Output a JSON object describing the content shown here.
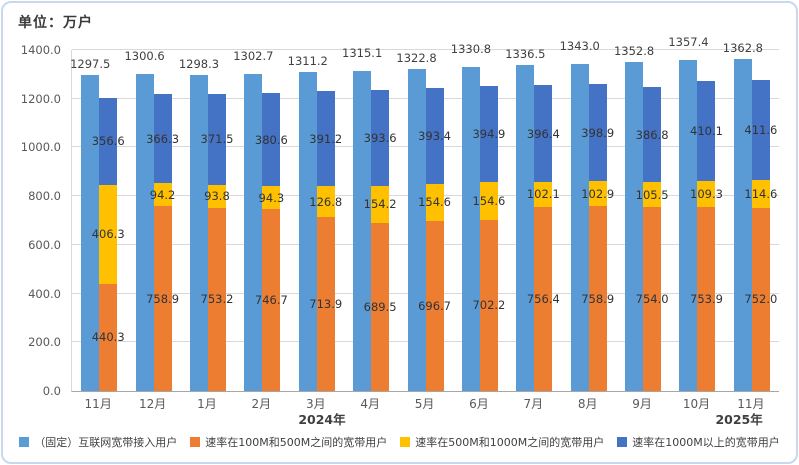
{
  "title": "单位：万户",
  "chart_data": {
    "type": "bar",
    "title": "单位：万户",
    "xlabel": "",
    "ylabel": "万户",
    "ylim": [
      0,
      1400
    ],
    "y_tick_step": 200,
    "grid": true,
    "legend_position": "bottom",
    "bar_arrangement": "per month: total bar beside a stacked bar (stack bottom→top: 100M-500M, 500M-1000M, 1000M+)",
    "categories": [
      "11月",
      "12月",
      "1月",
      "2月",
      "3月",
      "4月",
      "5月",
      "6月",
      "7月",
      "8月",
      "9月",
      "10月",
      "11月"
    ],
    "year_labels": [
      {
        "text": "2024年",
        "x_pct": 35.5
      },
      {
        "text": "2025年",
        "x_pct": 94.5
      }
    ],
    "series": [
      {
        "name": "（固定）互联网宽带接入用户",
        "color": "#5B9BD5",
        "role": "total",
        "values": [
          1297.5,
          1300.6,
          1298.3,
          1302.7,
          1311.2,
          1315.1,
          1322.8,
          1330.8,
          1336.5,
          1343.0,
          1352.8,
          1357.4,
          1362.8
        ]
      },
      {
        "name": "速率在100M和500M之间的宽带用户",
        "color": "#ED7D31",
        "role": "stack-bottom",
        "values": [
          440.3,
          758.9,
          753.2,
          746.7,
          713.9,
          689.5,
          696.7,
          702.2,
          756.4,
          758.9,
          754.0,
          753.9,
          752.0
        ]
      },
      {
        "name": "速率在500M和1000M之间的宽带用户",
        "color": "#FFC000",
        "role": "stack-middle",
        "values": [
          406.3,
          94.2,
          93.8,
          94.3,
          126.8,
          154.2,
          154.6,
          154.6,
          102.1,
          102.9,
          105.5,
          109.3,
          114.6
        ]
      },
      {
        "name": "速率在1000M以上的宽带用户",
        "color": "#4472C4",
        "role": "stack-top",
        "values": [
          356.6,
          366.3,
          371.5,
          380.6,
          391.2,
          393.6,
          393.4,
          394.9,
          396.4,
          398.9,
          386.8,
          410.1,
          411.6
        ]
      }
    ]
  }
}
